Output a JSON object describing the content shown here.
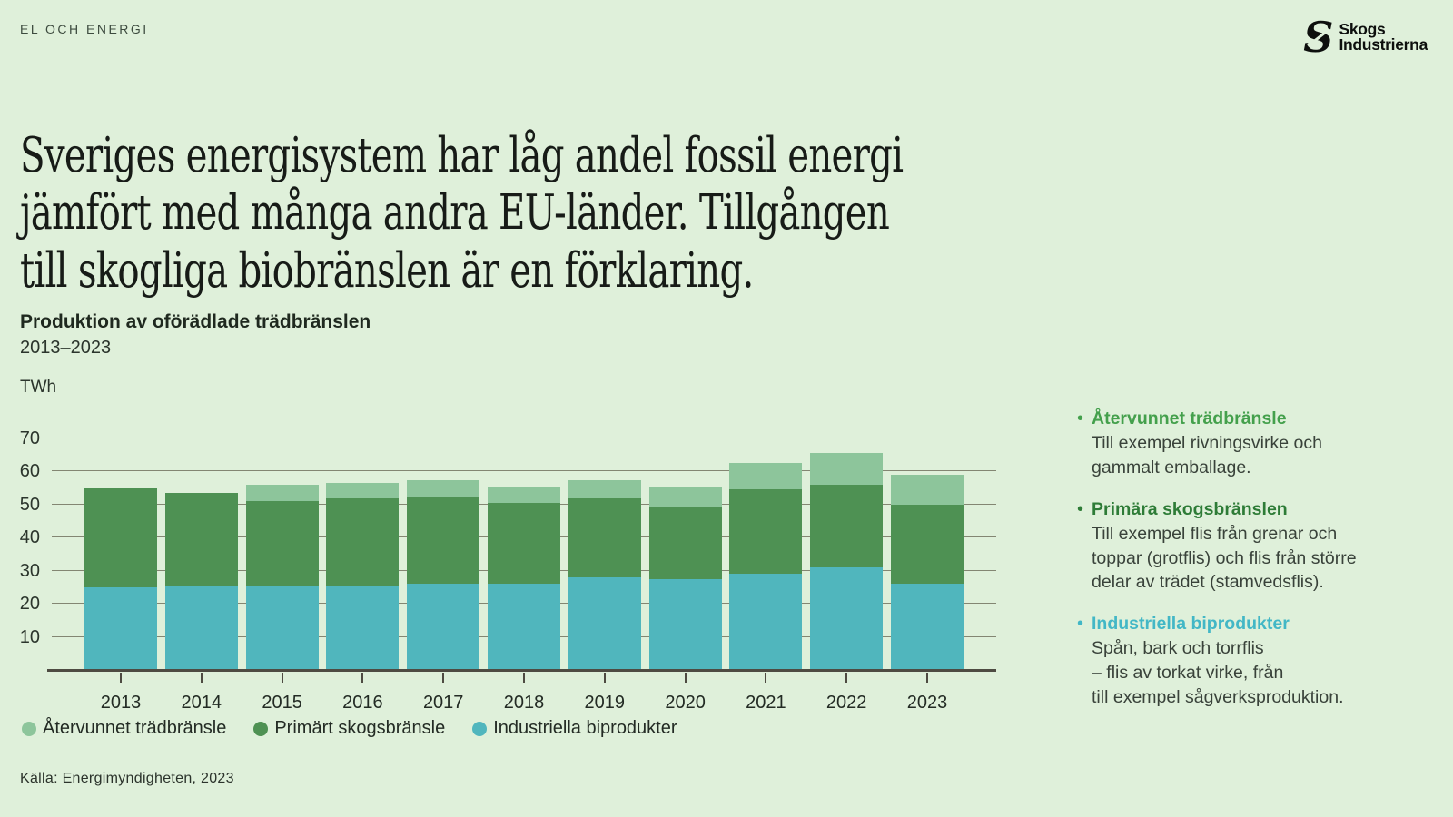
{
  "header": {
    "kicker": "EL OCH ENERGI",
    "logo": {
      "line1": "Skogs",
      "line2": "Industrierna"
    }
  },
  "headline": {
    "line1": "Sveriges energisystem har låg andel fossil energi",
    "line2": "jämfört med många andra EU-länder. Tillgången",
    "line3": "till skogliga biobränslen är en förklaring."
  },
  "chart_data": {
    "type": "bar",
    "stacked": true,
    "title": "Produktion av oförädlade trädbränslen",
    "subtitle": "2013–2023",
    "ylabel": "TWh",
    "ylim": [
      0,
      70
    ],
    "yticks": [
      10,
      20,
      30,
      40,
      50,
      60,
      70
    ],
    "grid": true,
    "legend_position": "bottom",
    "categories": [
      "2013",
      "2014",
      "2015",
      "2016",
      "2017",
      "2018",
      "2019",
      "2020",
      "2021",
      "2022",
      "2023"
    ],
    "series": [
      {
        "name": "Industriella biprodukter",
        "color": "#50b6bd",
        "values": [
          25,
          25.5,
          25.5,
          25.5,
          26,
          26,
          28,
          27.5,
          29,
          31,
          26
        ]
      },
      {
        "name": "Primärt skogsbränsle",
        "color": "#4e9153",
        "values": [
          30,
          28,
          25.5,
          26.5,
          26.5,
          24.5,
          24,
          22,
          25.5,
          25,
          24
        ]
      },
      {
        "name": "Återvunnet trädbränsle",
        "color": "#8dc59b",
        "values": [
          0,
          0,
          5,
          4.5,
          5,
          5,
          5.5,
          6,
          8,
          9.5,
          9
        ]
      }
    ],
    "legend": [
      {
        "label": "Återvunnet trädbränsle",
        "color": "#8dc59b"
      },
      {
        "label": "Primärt skogsbränsle",
        "color": "#4e9153"
      },
      {
        "label": "Industriella biprodukter",
        "color": "#50b6bd"
      }
    ]
  },
  "sidebar": {
    "items": [
      {
        "heading": "Återvunnet trädbränsle",
        "color": "#44a04c",
        "body_lines": [
          "Till exempel rivningsvirke och",
          "gammalt emballage."
        ]
      },
      {
        "heading": "Primära skogsbränslen",
        "color": "#2e7c37",
        "body_lines": [
          "Till exempel flis från grenar och",
          "toppar (grotflis) och flis från större",
          "delar av trädet (stamvedsflis)."
        ]
      },
      {
        "heading": "Industriella biprodukter",
        "color": "#42b7c6",
        "body_lines": [
          "Spån, bark och torrflis",
          "– flis av torkat virke, från",
          "till exempel sågverksproduktion."
        ]
      }
    ]
  },
  "footer": {
    "source": "Källa: Energimyndigheten, 2023"
  }
}
